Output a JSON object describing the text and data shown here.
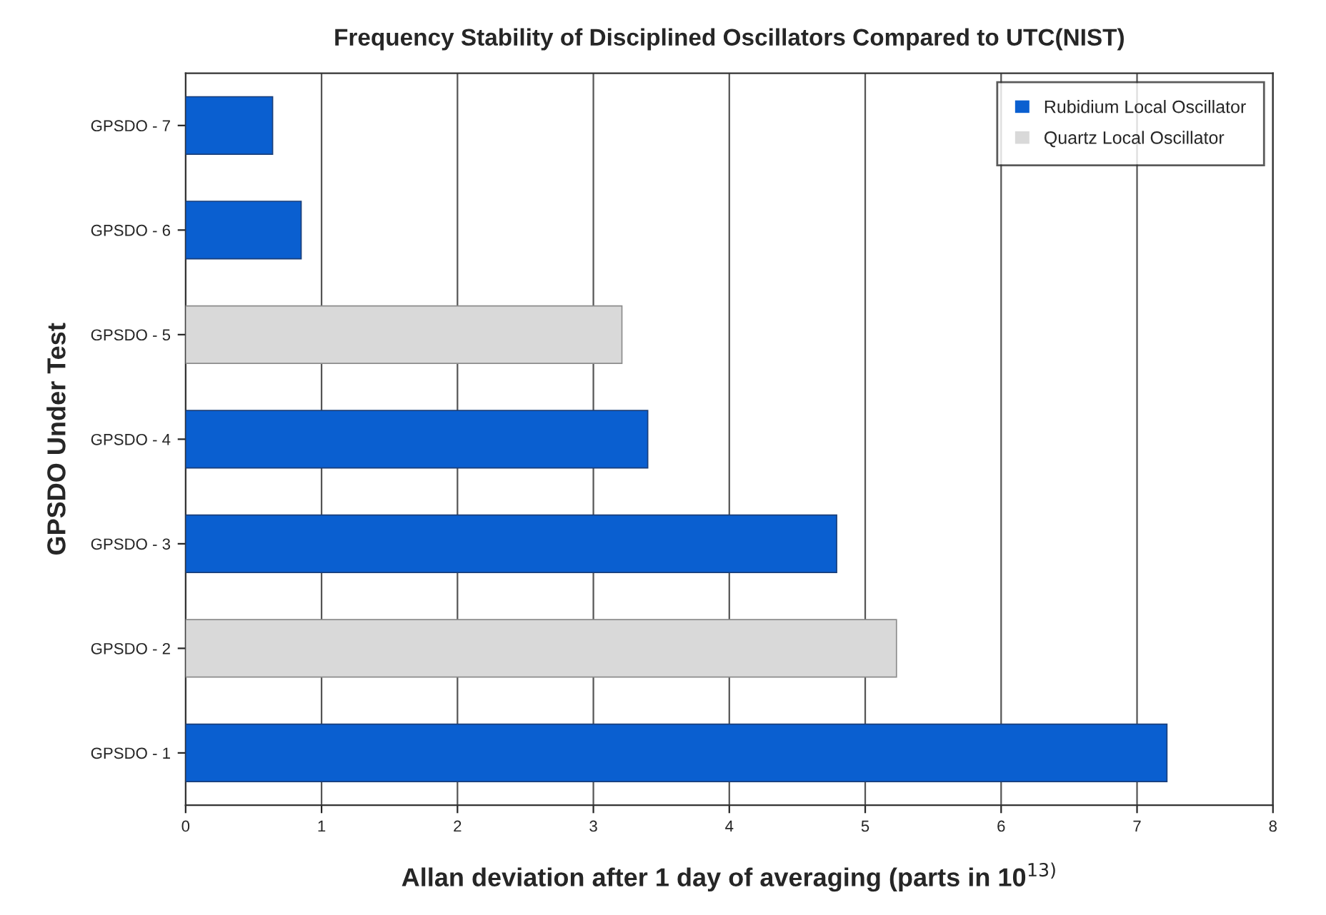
{
  "chart_data": {
    "type": "bar",
    "orientation": "horizontal",
    "title": "Frequency Stability of Disciplined Oscillators Compared to UTC(NIST)",
    "xlabel": "Allan deviation after 1 day of averaging (parts in 10$^{13)}$",
    "ylabel": "GPSDO Under Test",
    "categories": [
      "GPSDO - 7",
      "GPSDO - 6",
      "GPSDO - 5",
      "GPSDO - 4",
      "GPSDO - 3",
      "GPSDO - 2",
      "GPSDO - 1"
    ],
    "series": [
      {
        "name": "Rubidium Local Oscillator",
        "color": "#0a5fd0",
        "values": [
          0.64,
          0.85,
          null,
          3.4,
          4.79,
          null,
          7.22
        ]
      },
      {
        "name": "Quartz Local Oscillator",
        "color": "#d9d9d9",
        "values": [
          null,
          null,
          3.21,
          null,
          null,
          5.23,
          null
        ]
      }
    ],
    "xlim": [
      0,
      8
    ],
    "xticks": [
      0,
      1,
      2,
      3,
      4,
      5,
      6,
      7,
      8
    ],
    "grid": "x",
    "legend": "top right"
  }
}
